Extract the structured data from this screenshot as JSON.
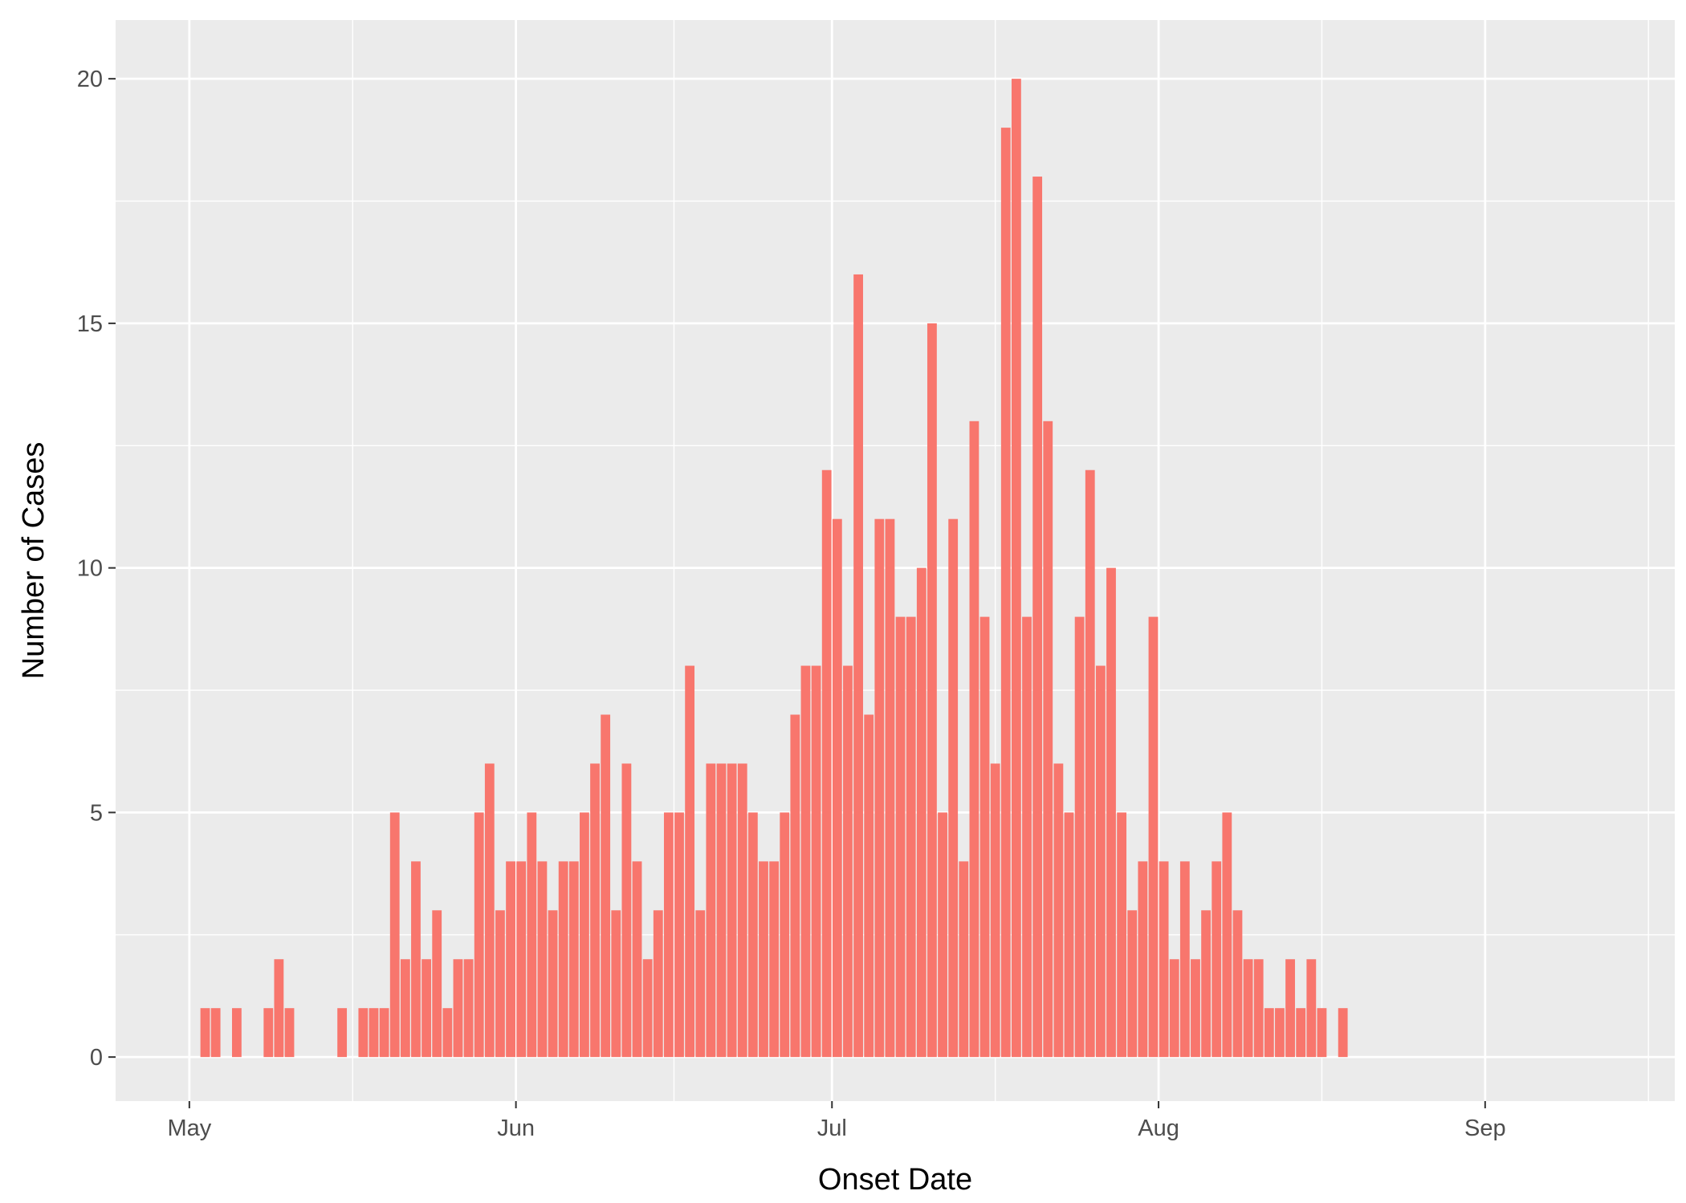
{
  "chart_data": {
    "type": "bar",
    "xlabel": "Onset Date",
    "ylabel": "Number of Cases",
    "x_ticks": [
      "May",
      "Jun",
      "Jul",
      "Aug",
      "Sep"
    ],
    "x_tick_dates": [
      "2021-05-01",
      "2021-06-01",
      "2021-07-01",
      "2021-08-01",
      "2021-09-01"
    ],
    "xlim": [
      "2020-04-24",
      "2020-09-19"
    ],
    "y_ticks": [
      0,
      5,
      10,
      15,
      20
    ],
    "ylim": [
      -0.9,
      21.2
    ],
    "grid": true,
    "legend": "none",
    "bar_color": "#F8766D",
    "panel_color": "#EBEBEB",
    "grid_color": "#FFFFFF",
    "x": [
      "2020-05-02",
      "2020-05-03",
      "2020-05-05",
      "2020-05-08",
      "2020-05-09",
      "2020-05-10",
      "2020-05-15",
      "2020-05-17",
      "2020-05-18",
      "2020-05-19",
      "2020-05-20",
      "2020-05-21",
      "2020-05-22",
      "2020-05-23",
      "2020-05-24",
      "2020-05-25",
      "2020-05-26",
      "2020-05-27",
      "2020-05-28",
      "2020-05-29",
      "2020-05-30",
      "2020-05-31",
      "2020-06-01",
      "2020-06-02",
      "2020-06-03",
      "2020-06-04",
      "2020-06-05",
      "2020-06-06",
      "2020-06-07",
      "2020-06-08",
      "2020-06-09",
      "2020-06-10",
      "2020-06-11",
      "2020-06-12",
      "2020-06-13",
      "2020-06-14",
      "2020-06-15",
      "2020-06-16",
      "2020-06-17",
      "2020-06-18",
      "2020-06-19",
      "2020-06-20",
      "2020-06-21",
      "2020-06-22",
      "2020-06-23",
      "2020-06-24",
      "2020-06-25",
      "2020-06-26",
      "2020-06-27",
      "2020-06-28",
      "2020-06-29",
      "2020-06-30",
      "2020-07-01",
      "2020-07-02",
      "2020-07-03",
      "2020-07-04",
      "2020-07-05",
      "2020-07-06",
      "2020-07-07",
      "2020-07-08",
      "2020-07-09",
      "2020-07-10",
      "2020-07-11",
      "2020-07-12",
      "2020-07-13",
      "2020-07-14",
      "2020-07-15",
      "2020-07-16",
      "2020-07-17",
      "2020-07-18",
      "2020-07-19",
      "2020-07-20",
      "2020-07-21",
      "2020-07-22",
      "2020-07-23",
      "2020-07-24",
      "2020-07-25",
      "2020-07-26",
      "2020-07-27",
      "2020-07-28",
      "2020-07-29",
      "2020-07-30",
      "2020-07-31",
      "2020-08-01",
      "2020-08-02",
      "2020-08-03",
      "2020-08-04",
      "2020-08-05",
      "2020-08-06",
      "2020-08-07",
      "2020-08-08",
      "2020-08-09",
      "2020-08-10",
      "2020-08-11",
      "2020-08-12",
      "2020-08-13",
      "2020-08-14",
      "2020-08-15",
      "2020-08-16",
      "2020-08-18"
    ],
    "values": [
      1,
      1,
      1,
      1,
      2,
      1,
      1,
      1,
      1,
      1,
      5,
      2,
      4,
      2,
      3,
      1,
      2,
      2,
      5,
      6,
      3,
      4,
      4,
      5,
      4,
      3,
      4,
      4,
      5,
      6,
      7,
      3,
      6,
      4,
      2,
      3,
      5,
      5,
      8,
      3,
      6,
      6,
      6,
      6,
      5,
      4,
      4,
      5,
      7,
      8,
      8,
      12,
      11,
      8,
      16,
      7,
      11,
      11,
      9,
      9,
      10,
      15,
      5,
      11,
      4,
      13,
      9,
      6,
      19,
      20,
      9,
      18,
      13,
      6,
      5,
      9,
      12,
      8,
      10,
      5,
      3,
      4,
      9,
      4,
      2,
      4,
      2,
      3,
      4,
      5,
      3,
      2,
      2,
      1,
      1,
      2,
      1,
      2,
      1,
      1
    ]
  }
}
